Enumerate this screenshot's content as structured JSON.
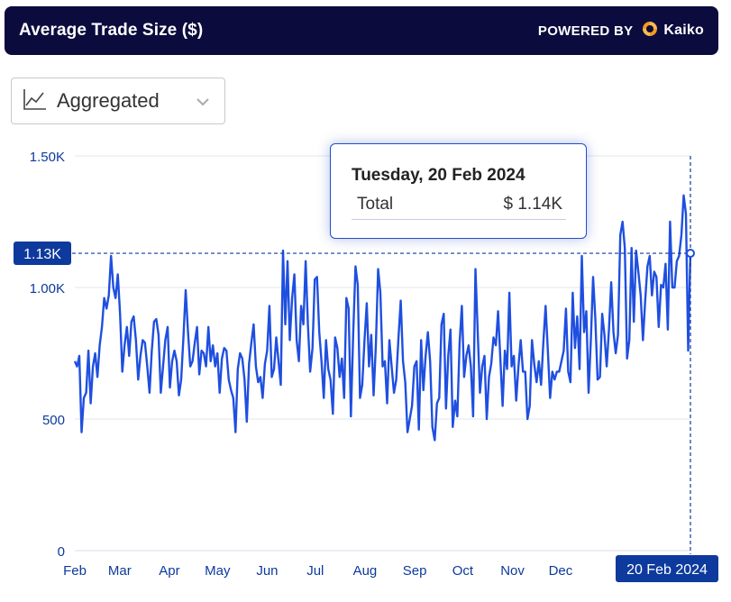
{
  "header": {
    "title": "Average Trade Size ($)",
    "powered_by": "POWERED BY",
    "brand": "Kaiko"
  },
  "dropdown": {
    "label": "Aggregated",
    "icon": "line-chart-icon"
  },
  "tooltip": {
    "date": "Tuesday, 20 Feb 2024",
    "series_label": "Total",
    "value": "$ 1.14K"
  },
  "crosshair": {
    "y_label": "1.13K",
    "x_label": "20 Feb 2024",
    "y_value": 1130
  },
  "colors": {
    "line": "#1f4fe0",
    "header_bg": "#0b0b3d",
    "label_bg": "#0d3a9c",
    "axis_text": "#0d3a9c",
    "brand_orange": "#f39a1f"
  },
  "chart_data": {
    "type": "line",
    "title": "Average Trade Size ($)",
    "xlabel": "",
    "ylabel": "",
    "ylim": [
      0,
      1500
    ],
    "y_ticks": [
      0,
      500,
      1000,
      1500
    ],
    "y_tick_labels": [
      "0",
      "500",
      "1.00K",
      "1.50K"
    ],
    "x_tick_labels": [
      "Feb",
      "Mar",
      "Apr",
      "May",
      "Jun",
      "Jul",
      "Aug",
      "Sep",
      "Oct",
      "Nov",
      "Dec"
    ],
    "grid": true,
    "series": [
      {
        "values": [
          720,
          700,
          740,
          450,
          580,
          600,
          760,
          560,
          700,
          750,
          660,
          780,
          850,
          960,
          920,
          970,
          1120,
          1000,
          960,
          1050,
          900,
          680,
          780,
          850,
          740,
          870,
          890,
          800,
          650,
          740,
          800,
          790,
          700,
          600,
          760,
          870,
          880,
          820,
          600,
          700,
          800,
          850,
          620,
          720,
          760,
          720,
          590,
          650,
          810,
          990,
          830,
          700,
          720,
          790,
          850,
          670,
          760,
          750,
          700,
          850,
          720,
          780,
          700,
          750,
          600,
          730,
          770,
          760,
          650,
          610,
          580,
          450,
          690,
          750,
          730,
          650,
          490,
          710,
          790,
          860,
          700,
          640,
          660,
          580,
          710,
          760,
          930,
          660,
          690,
          810,
          720,
          630,
          1140,
          860,
          1100,
          800,
          960,
          1050,
          800,
          720,
          930,
          860,
          1100,
          860,
          680,
          770,
          1030,
          1040,
          830,
          720,
          580,
          800,
          690,
          650,
          520,
          810,
          770,
          660,
          730,
          580,
          960,
          920,
          510,
          830,
          1080,
          1010,
          580,
          630,
          800,
          940,
          700,
          820,
          590,
          780,
          1070,
          980,
          700,
          720,
          560,
          800,
          700,
          600,
          650,
          810,
          950,
          720,
          640,
          450,
          500,
          550,
          700,
          720,
          460,
          800,
          610,
          740,
          830,
          720,
          470,
          420,
          560,
          580,
          860,
          900,
          540,
          740,
          840,
          470,
          570,
          510,
          790,
          930,
          660,
          740,
          780,
          700,
          510,
          1070,
          830,
          600,
          700,
          740,
          500,
          660,
          710,
          810,
          780,
          910,
          730,
          550,
          760,
          690,
          980,
          700,
          740,
          570,
          700,
          800,
          680,
          680,
          500,
          550,
          800,
          710,
          640,
          720,
          630,
          790,
          930,
          760,
          580,
          680,
          650,
          680,
          680,
          720,
          760,
          920,
          680,
          640,
          980,
          770,
          890,
          690,
          1120,
          830,
          910,
          600,
          800,
          1040,
          880,
          650,
          660,
          900,
          820,
          700,
          840,
          1020,
          830,
          750,
          820,
          1200,
          1250,
          1150,
          730,
          800,
          1150,
          870,
          1140,
          1060,
          970,
          800,
          950,
          1080,
          1120,
          970,
          1060,
          1040,
          850,
          1010,
          1000,
          1090,
          840,
          1250,
          1000,
          1000,
          1100,
          1120,
          1200,
          1350,
          1280,
          760,
          1140
        ],
        "color": "#1f4fe0"
      }
    ],
    "x_start": "2023-02-01",
    "x_end": "2024-02-20"
  }
}
